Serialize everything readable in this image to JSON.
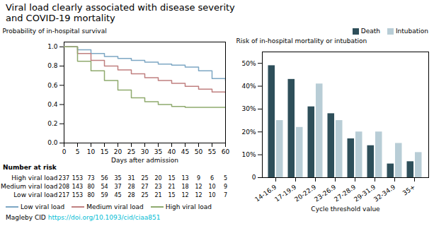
{
  "chart_data": [
    {
      "type": "step",
      "title": "Viral load clearly associated with disease severity\nand COVID-19 mortality",
      "x": [
        0,
        5,
        10,
        15,
        20,
        25,
        30,
        35,
        40,
        45,
        50,
        55,
        60
      ],
      "series": [
        {
          "name": "Low viral load",
          "color": "#7da7c4",
          "values": [
            1.0,
            0.97,
            0.93,
            0.9,
            0.88,
            0.86,
            0.84,
            0.82,
            0.81,
            0.79,
            0.75,
            0.67,
            0.65
          ]
        },
        {
          "name": "Medium viral load",
          "color": "#c08080",
          "values": [
            1.0,
            0.93,
            0.86,
            0.8,
            0.76,
            0.72,
            0.68,
            0.65,
            0.62,
            0.59,
            0.56,
            0.53,
            0.52
          ]
        },
        {
          "name": "High viral load",
          "color": "#8faa6e",
          "values": [
            1.0,
            0.85,
            0.75,
            0.65,
            0.55,
            0.47,
            0.43,
            0.4,
            0.38,
            0.37,
            0.37,
            0.37,
            0.37
          ]
        }
      ],
      "xlabel": "Days after admission",
      "ylabel": "Probability of in-hospital survival",
      "xlim": [
        0,
        60
      ],
      "xticks": [
        0,
        5,
        10,
        15,
        20,
        25,
        30,
        35,
        40,
        45,
        50,
        55,
        60
      ],
      "ylim": [
        0,
        1.05
      ],
      "yticks": [
        {
          "value": 0,
          "label": "0.0"
        },
        0.2,
        0.4,
        0.6,
        0.8,
        {
          "value": 1,
          "label": "1.0"
        }
      ],
      "grid": false,
      "legend": "bottom",
      "risk_table": {
        "title": "Number at risk",
        "rows": [
          {
            "name": "High viral load",
            "values": [
              237,
              153,
              73,
              56,
              35,
              31,
              25,
              20,
              15,
              13,
              9,
              6,
              5
            ]
          },
          {
            "name": "Medium viral load",
            "values": [
              208,
              143,
              80,
              54,
              37,
              28,
              27,
              23,
              21,
              18,
              12,
              10,
              9
            ]
          },
          {
            "name": "Low viral load",
            "values": [
              217,
              153,
              80,
              59,
              45,
              28,
              25,
              21,
              15,
              12,
              12,
              10,
              7
            ]
          }
        ]
      },
      "annotations": [
        {
          "text": "Magleby CID "
        },
        {
          "text": "https://doi.org/10.1093/cid/ciaa851",
          "color": "#00bcd4"
        }
      ]
    },
    {
      "type": "bar",
      "categories": [
        "14-16.9",
        "17-19.9",
        "20-22.9",
        "23-26.9",
        "27-28.9",
        "29-31.9",
        "32-34.9",
        "35+"
      ],
      "series": [
        {
          "name": "Death",
          "color": "#2e4f5a",
          "values": [
            0.49,
            0.43,
            0.31,
            0.28,
            0.17,
            0.14,
            0.06,
            0.07
          ]
        },
        {
          "name": "Intubation",
          "color": "#b8cdd6",
          "values": [
            0.25,
            0.22,
            0.41,
            0.25,
            0.2,
            0.2,
            0.15,
            0.11
          ]
        }
      ],
      "xlabel": "Cycle threshold value",
      "ylabel": "Risk of in-hospital mortality or intubation",
      "ylim": [
        0,
        0.55
      ],
      "yticks": [
        0,
        {
          "value": 0.1,
          "label": "10%"
        },
        {
          "value": 0.2,
          "label": "20%"
        },
        {
          "value": 0.3,
          "label": "30%"
        },
        {
          "value": 0.4,
          "label": "40%"
        },
        {
          "value": 0.5,
          "label": "50%"
        }
      ],
      "grid": false,
      "legend": "upper right"
    }
  ]
}
